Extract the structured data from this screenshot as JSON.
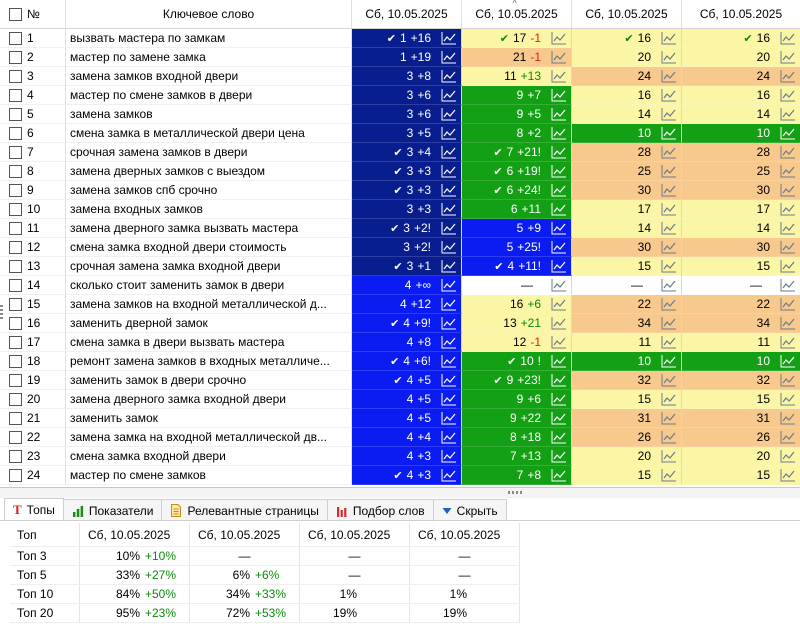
{
  "grid": {
    "headers": {
      "num": "№",
      "keyword": "Ключевое слово",
      "dates": [
        "Сб, 10.05.2025",
        "Сб, 10.05.2025",
        "Сб, 10.05.2025",
        "Сб, 10.05.2025"
      ]
    },
    "theme_colors": {
      "dark_blue": "#081e8e",
      "bright_blue": "#0b1cf2",
      "green": "#14a014",
      "yellow": "#fbf5a6",
      "orange": "#f7c98d",
      "delta_up": "#0a8a0a",
      "delta_down": "#e21a1a"
    },
    "rows": [
      {
        "num": "1",
        "kw": "вызвать мастера по замкам",
        "cells": [
          {
            "t": "dk-blue",
            "chk": true,
            "pos": "1",
            "d": "+16"
          },
          {
            "t": "yellow",
            "chk": true,
            "pos": "17",
            "d": "-1",
            "dir": "down"
          },
          {
            "t": "yellow",
            "chk": true,
            "pos": "16",
            "d": ""
          },
          {
            "t": "yellow",
            "chk": true,
            "pos": "16",
            "d": ""
          }
        ]
      },
      {
        "num": "2",
        "kw": "мастер по замене замка",
        "cells": [
          {
            "t": "dk-blue",
            "chk": false,
            "pos": "1",
            "d": "+19"
          },
          {
            "t": "orange",
            "chk": false,
            "pos": "21",
            "d": "-1",
            "dir": "down"
          },
          {
            "t": "yellow",
            "chk": false,
            "pos": "20",
            "d": ""
          },
          {
            "t": "yellow",
            "chk": false,
            "pos": "20",
            "d": ""
          }
        ]
      },
      {
        "num": "3",
        "kw": "замена замков входной двери",
        "cells": [
          {
            "t": "dk-blue",
            "chk": false,
            "pos": "3",
            "d": "+8"
          },
          {
            "t": "yellow",
            "chk": false,
            "pos": "11",
            "d": "+13"
          },
          {
            "t": "orange",
            "chk": false,
            "pos": "24",
            "d": ""
          },
          {
            "t": "orange",
            "chk": false,
            "pos": "24",
            "d": ""
          }
        ]
      },
      {
        "num": "4",
        "kw": "мастер по смене замков в двери",
        "cells": [
          {
            "t": "dk-blue",
            "chk": false,
            "pos": "3",
            "d": "+6"
          },
          {
            "t": "green",
            "chk": false,
            "pos": "9",
            "d": "+7"
          },
          {
            "t": "yellow",
            "chk": false,
            "pos": "16",
            "d": ""
          },
          {
            "t": "yellow",
            "chk": false,
            "pos": "16",
            "d": ""
          }
        ]
      },
      {
        "num": "5",
        "kw": "замена замков",
        "cells": [
          {
            "t": "dk-blue",
            "chk": false,
            "pos": "3",
            "d": "+6"
          },
          {
            "t": "green",
            "chk": false,
            "pos": "9",
            "d": "+5"
          },
          {
            "t": "yellow",
            "chk": false,
            "pos": "14",
            "d": ""
          },
          {
            "t": "yellow",
            "chk": false,
            "pos": "14",
            "d": ""
          }
        ]
      },
      {
        "num": "6",
        "kw": "смена замка в металлической двери цена",
        "cells": [
          {
            "t": "dk-blue",
            "chk": false,
            "pos": "3",
            "d": "+5"
          },
          {
            "t": "green",
            "chk": false,
            "pos": "8",
            "d": "+2"
          },
          {
            "t": "green",
            "chk": false,
            "pos": "10",
            "d": ""
          },
          {
            "t": "green",
            "chk": false,
            "pos": "10",
            "d": ""
          }
        ]
      },
      {
        "num": "7",
        "kw": "срочная замена замков в двери",
        "cells": [
          {
            "t": "dk-blue",
            "chk": true,
            "pos": "3",
            "d": "+4"
          },
          {
            "t": "green",
            "chk": true,
            "pos": "7",
            "d": "+21!"
          },
          {
            "t": "orange",
            "chk": false,
            "pos": "28",
            "d": ""
          },
          {
            "t": "orange",
            "chk": false,
            "pos": "28",
            "d": ""
          }
        ]
      },
      {
        "num": "8",
        "kw": "замена дверных замков с выездом",
        "cells": [
          {
            "t": "dk-blue",
            "chk": true,
            "pos": "3",
            "d": "+3"
          },
          {
            "t": "green",
            "chk": true,
            "pos": "6",
            "d": "+19!"
          },
          {
            "t": "orange",
            "chk": false,
            "pos": "25",
            "d": ""
          },
          {
            "t": "orange",
            "chk": false,
            "pos": "25",
            "d": ""
          }
        ]
      },
      {
        "num": "9",
        "kw": "замена замков спб срочно",
        "cells": [
          {
            "t": "dk-blue",
            "chk": true,
            "pos": "3",
            "d": "+3"
          },
          {
            "t": "green",
            "chk": true,
            "pos": "6",
            "d": "+24!"
          },
          {
            "t": "orange",
            "chk": false,
            "pos": "30",
            "d": ""
          },
          {
            "t": "orange",
            "chk": false,
            "pos": "30",
            "d": ""
          }
        ]
      },
      {
        "num": "10",
        "kw": "замена входных замков",
        "cells": [
          {
            "t": "dk-blue",
            "chk": false,
            "pos": "3",
            "d": "+3"
          },
          {
            "t": "green",
            "chk": false,
            "pos": "6",
            "d": "+11"
          },
          {
            "t": "yellow",
            "chk": false,
            "pos": "17",
            "d": ""
          },
          {
            "t": "yellow",
            "chk": false,
            "pos": "17",
            "d": ""
          }
        ]
      },
      {
        "num": "11",
        "kw": "замена дверного замка вызвать мастера",
        "cells": [
          {
            "t": "dk-blue",
            "chk": true,
            "pos": "3",
            "d": "+2!"
          },
          {
            "t": "br-blue",
            "chk": false,
            "pos": "5",
            "d": "+9"
          },
          {
            "t": "yellow",
            "chk": false,
            "pos": "14",
            "d": ""
          },
          {
            "t": "yellow",
            "chk": false,
            "pos": "14",
            "d": ""
          }
        ]
      },
      {
        "num": "12",
        "kw": "смена замка входной двери стоимость",
        "cells": [
          {
            "t": "dk-blue",
            "chk": false,
            "pos": "3",
            "d": "+2!"
          },
          {
            "t": "br-blue",
            "chk": false,
            "pos": "5",
            "d": "+25!"
          },
          {
            "t": "orange",
            "chk": false,
            "pos": "30",
            "d": ""
          },
          {
            "t": "orange",
            "chk": false,
            "pos": "30",
            "d": ""
          }
        ]
      },
      {
        "num": "13",
        "kw": "срочная замена замка входной двери",
        "cells": [
          {
            "t": "dk-blue",
            "chk": true,
            "pos": "3",
            "d": "+1"
          },
          {
            "t": "br-blue",
            "chk": true,
            "pos": "4",
            "d": "+11!"
          },
          {
            "t": "yellow",
            "chk": false,
            "pos": "15",
            "d": ""
          },
          {
            "t": "yellow",
            "chk": false,
            "pos": "15",
            "d": ""
          }
        ]
      },
      {
        "num": "14",
        "kw": "сколько стоит заменить замок в двери",
        "cells": [
          {
            "t": "br-blue",
            "chk": false,
            "pos": "4",
            "d": "+∞"
          },
          {
            "t": "white",
            "chk": false,
            "pos": "—",
            "d": "",
            "center": true
          },
          {
            "t": "white",
            "chk": false,
            "pos": "—",
            "d": "",
            "center": true
          },
          {
            "t": "white",
            "chk": false,
            "pos": "—",
            "d": "",
            "center": true
          }
        ]
      },
      {
        "num": "15",
        "kw": "замена замков на входной металлической д...",
        "cells": [
          {
            "t": "br-blue",
            "chk": false,
            "pos": "4",
            "d": "+12"
          },
          {
            "t": "yellow",
            "chk": false,
            "pos": "16",
            "d": "+6"
          },
          {
            "t": "orange",
            "chk": false,
            "pos": "22",
            "d": ""
          },
          {
            "t": "orange",
            "chk": false,
            "pos": "22",
            "d": ""
          }
        ]
      },
      {
        "num": "16",
        "kw": "заменить дверной замок",
        "cells": [
          {
            "t": "br-blue",
            "chk": true,
            "pos": "4",
            "d": "+9!"
          },
          {
            "t": "yellow",
            "chk": false,
            "pos": "13",
            "d": "+21"
          },
          {
            "t": "orange",
            "chk": false,
            "pos": "34",
            "d": ""
          },
          {
            "t": "orange",
            "chk": false,
            "pos": "34",
            "d": ""
          }
        ]
      },
      {
        "num": "17",
        "kw": "смена замка в двери вызвать мастера",
        "cells": [
          {
            "t": "br-blue",
            "chk": false,
            "pos": "4",
            "d": "+8"
          },
          {
            "t": "yellow",
            "chk": false,
            "pos": "12",
            "d": "-1",
            "dir": "down"
          },
          {
            "t": "yellow",
            "chk": false,
            "pos": "11",
            "d": ""
          },
          {
            "t": "yellow",
            "chk": false,
            "pos": "11",
            "d": ""
          }
        ]
      },
      {
        "num": "18",
        "kw": "ремонт замена замков в входных металличе...",
        "cells": [
          {
            "t": "br-blue",
            "chk": true,
            "pos": "4",
            "d": "+6!"
          },
          {
            "t": "green",
            "chk": true,
            "pos": "10",
            "d": "!"
          },
          {
            "t": "green",
            "chk": false,
            "pos": "10",
            "d": ""
          },
          {
            "t": "green",
            "chk": false,
            "pos": "10",
            "d": ""
          }
        ]
      },
      {
        "num": "19",
        "kw": "заменить замок в двери срочно",
        "cells": [
          {
            "t": "br-blue",
            "chk": true,
            "pos": "4",
            "d": "+5"
          },
          {
            "t": "green",
            "chk": true,
            "pos": "9",
            "d": "+23!"
          },
          {
            "t": "orange",
            "chk": false,
            "pos": "32",
            "d": ""
          },
          {
            "t": "orange",
            "chk": false,
            "pos": "32",
            "d": ""
          }
        ]
      },
      {
        "num": "20",
        "kw": "замена дверного замка входной двери",
        "cells": [
          {
            "t": "br-blue",
            "chk": false,
            "pos": "4",
            "d": "+5"
          },
          {
            "t": "green",
            "chk": false,
            "pos": "9",
            "d": "+6"
          },
          {
            "t": "yellow",
            "chk": false,
            "pos": "15",
            "d": ""
          },
          {
            "t": "yellow",
            "chk": false,
            "pos": "15",
            "d": ""
          }
        ]
      },
      {
        "num": "21",
        "kw": "заменить замок",
        "cells": [
          {
            "t": "br-blue",
            "chk": false,
            "pos": "4",
            "d": "+5"
          },
          {
            "t": "green",
            "chk": false,
            "pos": "9",
            "d": "+22"
          },
          {
            "t": "orange",
            "chk": false,
            "pos": "31",
            "d": ""
          },
          {
            "t": "orange",
            "chk": false,
            "pos": "31",
            "d": ""
          }
        ]
      },
      {
        "num": "22",
        "kw": "замена замка на входной металлической дв...",
        "cells": [
          {
            "t": "br-blue",
            "chk": false,
            "pos": "4",
            "d": "+4"
          },
          {
            "t": "green",
            "chk": false,
            "pos": "8",
            "d": "+18"
          },
          {
            "t": "orange",
            "chk": false,
            "pos": "26",
            "d": ""
          },
          {
            "t": "orange",
            "chk": false,
            "pos": "26",
            "d": ""
          }
        ]
      },
      {
        "num": "23",
        "kw": "смена замка входной двери",
        "cells": [
          {
            "t": "br-blue",
            "chk": false,
            "pos": "4",
            "d": "+3"
          },
          {
            "t": "green",
            "chk": false,
            "pos": "7",
            "d": "+13"
          },
          {
            "t": "yellow",
            "chk": false,
            "pos": "20",
            "d": ""
          },
          {
            "t": "yellow",
            "chk": false,
            "pos": "20",
            "d": ""
          }
        ]
      },
      {
        "num": "24",
        "kw": "мастер по смене замков",
        "cells": [
          {
            "t": "br-blue",
            "chk": true,
            "pos": "4",
            "d": "+3"
          },
          {
            "t": "green",
            "chk": false,
            "pos": "7",
            "d": "+8"
          },
          {
            "t": "yellow",
            "chk": false,
            "pos": "15",
            "d": ""
          },
          {
            "t": "yellow",
            "chk": false,
            "pos": "15",
            "d": ""
          }
        ]
      }
    ]
  },
  "tabs": [
    {
      "label": "Топы",
      "icon": "red-t-icon",
      "active": true
    },
    {
      "label": "Показатели",
      "icon": "bar-chart-icon",
      "active": false
    },
    {
      "label": "Релевантные страницы",
      "icon": "document-icon",
      "active": false
    },
    {
      "label": "Подбор слов",
      "icon": "red-bars-icon",
      "active": false
    },
    {
      "label": "Скрыть",
      "icon": "triangle-down-icon",
      "active": false
    }
  ],
  "bottom_table": {
    "headers": [
      "Топ",
      "Сб, 10.05.2025",
      "Сб, 10.05.2025",
      "Сб, 10.05.2025",
      "Сб, 10.05.2025"
    ],
    "rows": [
      {
        "label": "Топ 3",
        "cells": [
          {
            "v": "10%",
            "d": "+10%"
          },
          {
            "v": "—",
            "d": ""
          },
          {
            "v": "—",
            "d": ""
          },
          {
            "v": "—",
            "d": ""
          }
        ]
      },
      {
        "label": "Топ 5",
        "cells": [
          {
            "v": "33%",
            "d": "+27%"
          },
          {
            "v": "6%",
            "d": "+6%"
          },
          {
            "v": "—",
            "d": ""
          },
          {
            "v": "—",
            "d": ""
          }
        ]
      },
      {
        "label": "Топ 10",
        "cells": [
          {
            "v": "84%",
            "d": "+50%"
          },
          {
            "v": "34%",
            "d": "+33%"
          },
          {
            "v": "1%",
            "d": ""
          },
          {
            "v": "1%",
            "d": ""
          }
        ]
      },
      {
        "label": "Топ 20",
        "cells": [
          {
            "v": "95%",
            "d": "+23%"
          },
          {
            "v": "72%",
            "d": "+53%"
          },
          {
            "v": "19%",
            "d": ""
          },
          {
            "v": "19%",
            "d": ""
          }
        ]
      }
    ]
  },
  "glyphs": {
    "check": "✔",
    "sort_caret": "^"
  }
}
